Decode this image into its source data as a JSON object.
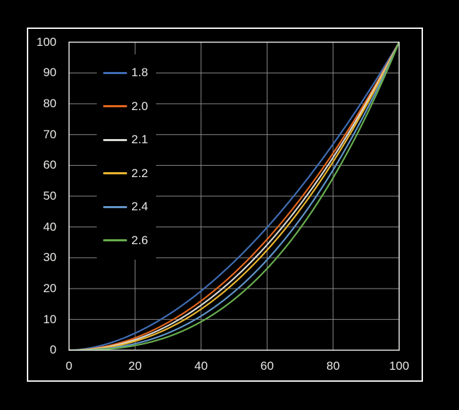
{
  "window": {
    "background_color": "#000000",
    "frame_border_color": "#f1f1ef"
  },
  "plot": {
    "border_color": "#e3e3e1",
    "grid_color": "#8a8a8a",
    "tick_text_color": "#e8e8e6"
  },
  "legend": {
    "position": "upper-left",
    "background": "#000000",
    "items": [
      {
        "label": "1.8",
        "color": "#3f6db4"
      },
      {
        "label": "2.0",
        "color": "#e5671c"
      },
      {
        "label": "2.1",
        "color": "#d8d7d3"
      },
      {
        "label": "2.2",
        "color": "#eab62e"
      },
      {
        "label": "2.4",
        "color": "#6094c8"
      },
      {
        "label": "2.6",
        "color": "#68ae4e"
      }
    ]
  },
  "axes": {
    "x_tick_labels": [
      "0",
      "20",
      "40",
      "60",
      "80",
      "100"
    ],
    "y_tick_labels": [
      "100",
      "90",
      "80",
      "70",
      "60",
      "50",
      "40",
      "30",
      "20",
      "10",
      "0"
    ]
  },
  "chart_data": {
    "type": "line",
    "title": "",
    "xlabel": "",
    "ylabel": "",
    "xlim": [
      0,
      100
    ],
    "ylim": [
      0,
      100
    ],
    "x_ticks": [
      0,
      20,
      40,
      60,
      80,
      100
    ],
    "y_ticks": [
      0,
      10,
      20,
      30,
      40,
      50,
      60,
      70,
      80,
      90,
      100
    ],
    "grid": true,
    "legend_position": "upper-left",
    "formula": "y = 100 * (x/100)^gamma",
    "x_sample": [
      0,
      10,
      20,
      30,
      40,
      50,
      60,
      70,
      80,
      90,
      100
    ],
    "series": [
      {
        "name": "1.8",
        "gamma": 1.8,
        "color": "#3f6db4",
        "values": [
          0,
          1.6,
          5.5,
          11.5,
          19.2,
          28.7,
          39.9,
          52.6,
          66.9,
          82.7,
          100
        ]
      },
      {
        "name": "2.0",
        "gamma": 2.0,
        "color": "#e5671c",
        "values": [
          0,
          1.0,
          4.0,
          9.0,
          16.0,
          25.0,
          36.0,
          49.0,
          64.0,
          81.0,
          100
        ]
      },
      {
        "name": "2.1",
        "gamma": 2.1,
        "color": "#d8d7d3",
        "values": [
          0,
          0.8,
          3.4,
          8.0,
          14.6,
          23.3,
          34.2,
          47.3,
          62.6,
          80.2,
          100
        ]
      },
      {
        "name": "2.2",
        "gamma": 2.2,
        "color": "#eab62e",
        "values": [
          0,
          0.6,
          2.9,
          7.1,
          13.3,
          21.8,
          32.5,
          45.6,
          61.2,
          79.3,
          100
        ]
      },
      {
        "name": "2.4",
        "gamma": 2.4,
        "color": "#6094c8",
        "values": [
          0,
          0.4,
          2.1,
          5.6,
          11.1,
          19.0,
          29.3,
          42.5,
          58.5,
          77.7,
          100
        ]
      },
      {
        "name": "2.6",
        "gamma": 2.6,
        "color": "#68ae4e",
        "values": [
          0,
          0.3,
          1.5,
          4.4,
          9.2,
          16.5,
          26.5,
          39.6,
          56.0,
          76.1,
          100
        ]
      }
    ]
  }
}
